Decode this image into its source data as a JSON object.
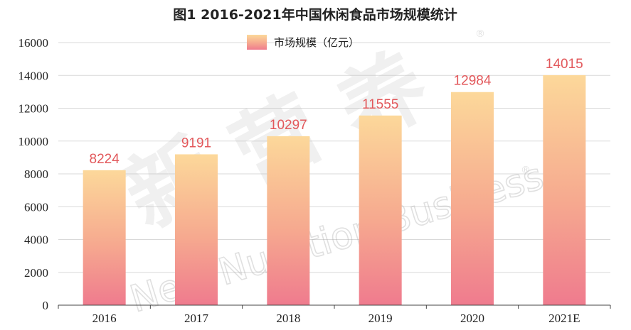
{
  "chart_data": {
    "type": "bar",
    "title": "图1 2016-2021年中国休闲食品市场规模统计",
    "categories": [
      "2016",
      "2017",
      "2018",
      "2019",
      "2020",
      "2021E"
    ],
    "series": [
      {
        "name": "市场规模（亿元）",
        "values": [
          8224,
          9191,
          10297,
          11555,
          12984,
          14015
        ]
      }
    ],
    "data_labels": [
      "8224",
      "9191",
      "10297",
      "11555",
      "12984",
      "14015"
    ],
    "y_ticks": [
      "0",
      "2000",
      "4000",
      "6000",
      "8000",
      "10000",
      "12000",
      "14000",
      "16000"
    ],
    "ylim": [
      0,
      16000
    ],
    "xlabel": "",
    "ylabel": "",
    "grid": true,
    "legend_position": "top-center",
    "colors": {
      "bar_top": "#fcd89a",
      "bar_bottom": "#ef7b8e",
      "data_label": "#e2585b",
      "grid": "#d9d9d9"
    }
  },
  "watermark": {
    "cn_chars": [
      "新",
      "营",
      "养"
    ],
    "en_text": "New Nutrition Business",
    "reg_mark": "®"
  }
}
